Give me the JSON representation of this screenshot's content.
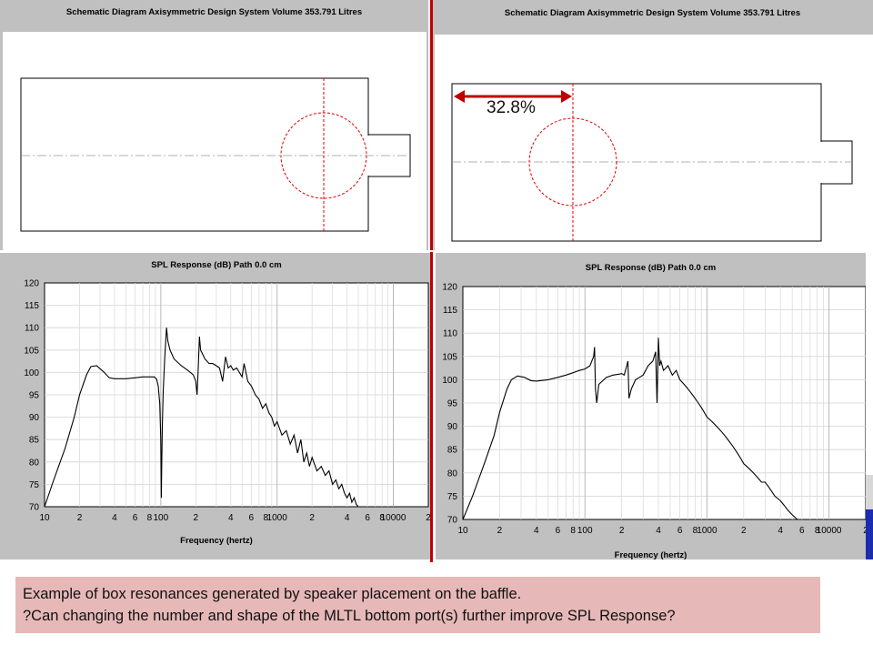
{
  "left": {
    "schematic_title": "Schematic Diagram   Axisymmetric Design   System Volume 353.791 Litres",
    "chart_title": "SPL Response (dB)   Path 0.0 cm",
    "xlabel": "Frequency (hertz)"
  },
  "right": {
    "schematic_title": "Schematic Diagram   Axisymmetric Design   System Volume 353.791 Litres",
    "chart_title": "SPL Response (dB)   Path 0.0 cm",
    "xlabel": "Frequency (hertz)",
    "annotation": "32.8%"
  },
  "caption": {
    "line1": "Example of box resonances generated by speaker placement on the baffle.",
    "line2": "?Can changing the number and shape of the MLTL bottom port(s) further improve SPL Response?"
  },
  "colors": {
    "accent_red": "#c00000",
    "caption_bg": "#e6b9b8",
    "panel_gray": "#c0c0c0"
  },
  "chart_data": [
    {
      "type": "line",
      "title": "SPL Response (dB)   Path 0.0 cm",
      "xlabel": "Frequency (hertz)",
      "ylabel": "",
      "xscale": "log",
      "xlim": [
        10,
        20000
      ],
      "ylim": [
        70,
        120
      ],
      "yticks": [
        70,
        75,
        80,
        85,
        90,
        95,
        100,
        105,
        110,
        115,
        120
      ],
      "xtick_labels": [
        "10",
        "2",
        "4",
        "6",
        "8",
        "100",
        "2",
        "4",
        "6",
        "8",
        "1000",
        "2",
        "4",
        "6",
        "8",
        "10000",
        "2"
      ],
      "xtick_values": [
        10,
        20,
        40,
        60,
        80,
        100,
        200,
        400,
        600,
        800,
        1000,
        2000,
        4000,
        6000,
        8000,
        10000,
        20000
      ],
      "grid": true,
      "series": [
        {
          "x": [
            10,
            12,
            15,
            18,
            20,
            23,
            25,
            28,
            32,
            36,
            40,
            50,
            60,
            70,
            80,
            88,
            92,
            95,
            98,
            100,
            101,
            102,
            103,
            105,
            108,
            112,
            115,
            120,
            130,
            150,
            170,
            190,
            200,
            205,
            210,
            215,
            220,
            240,
            260,
            280,
            300,
            320,
            340,
            360,
            380,
            400,
            420,
            450,
            500,
            520,
            560,
            600,
            650,
            700,
            750,
            800,
            850,
            900,
            950,
            1000,
            1100,
            1200,
            1300,
            1400,
            1500,
            1600,
            1700,
            1800,
            1900,
            2000,
            2200,
            2400,
            2600,
            2800,
            3000,
            3200,
            3400,
            3600,
            3800,
            4000,
            4200,
            4400,
            4600,
            4800,
            5000
          ],
          "y": [
            70,
            76,
            83,
            90,
            95,
            99.5,
            101.3,
            101.5,
            100.2,
            98.8,
            98.6,
            98.6,
            98.8,
            99,
            99,
            99,
            98.5,
            97,
            93,
            85,
            72,
            80,
            88,
            96,
            103,
            110,
            107,
            105,
            103,
            101.5,
            100.5,
            99.5,
            98,
            95,
            101,
            108,
            105,
            103,
            102,
            102,
            101.5,
            101,
            98,
            103.5,
            101,
            101.5,
            100.5,
            101,
            99,
            102,
            98,
            97,
            95,
            94,
            92,
            93,
            91,
            90,
            88,
            89,
            86,
            87,
            84,
            86,
            82,
            85,
            80,
            82,
            79,
            81,
            78,
            79,
            77,
            78,
            75,
            76,
            74,
            75,
            73,
            72,
            73,
            71,
            72,
            70.5,
            70
          ]
        }
      ]
    },
    {
      "type": "line",
      "title": "SPL Response (dB)   Path 0.0 cm",
      "xlabel": "Frequency (hertz)",
      "ylabel": "",
      "xscale": "log",
      "xlim": [
        10,
        20000
      ],
      "ylim": [
        70,
        120
      ],
      "yticks": [
        70,
        75,
        80,
        85,
        90,
        95,
        100,
        105,
        110,
        115,
        120
      ],
      "xtick_labels": [
        "10",
        "2",
        "4",
        "6",
        "8",
        "100",
        "2",
        "4",
        "6",
        "8",
        "1000",
        "2",
        "4",
        "6",
        "8",
        "10000",
        "2"
      ],
      "xtick_values": [
        10,
        20,
        40,
        60,
        80,
        100,
        200,
        400,
        600,
        800,
        1000,
        2000,
        4000,
        6000,
        8000,
        10000,
        20000
      ],
      "grid": true,
      "series": [
        {
          "x": [
            10,
            12,
            15,
            18,
            20,
            23,
            25,
            28,
            32,
            36,
            40,
            50,
            60,
            70,
            80,
            90,
            100,
            110,
            118,
            120,
            122,
            125,
            130,
            150,
            170,
            190,
            200,
            210,
            220,
            225,
            230,
            240,
            260,
            280,
            300,
            330,
            360,
            380,
            390,
            400,
            410,
            420,
            440,
            480,
            520,
            560,
            600,
            650,
            700,
            750,
            800,
            850,
            900,
            950,
            1000,
            1100,
            1200,
            1300,
            1400,
            1500,
            1600,
            1700,
            1800,
            1900,
            2000,
            2200,
            2400,
            2600,
            2800,
            3000,
            3200,
            3400,
            3600,
            3800,
            4000,
            4300,
            4600,
            5000,
            5500
          ],
          "y": [
            70,
            75,
            82,
            88,
            93,
            98,
            100,
            100.8,
            100.5,
            99.8,
            99.7,
            100,
            100.5,
            101,
            101.5,
            102,
            102.3,
            103,
            105,
            107,
            98,
            95,
            99,
            100.5,
            101,
            101.2,
            101.3,
            101,
            103,
            104,
            96,
            98,
            100,
            100.5,
            101,
            103,
            104,
            106,
            95,
            109,
            103,
            104,
            102,
            103,
            101,
            102,
            100,
            99,
            98,
            97,
            96,
            95,
            94,
            93,
            92,
            91,
            90,
            89,
            88,
            87,
            86,
            85,
            84,
            83,
            82,
            81,
            80,
            79,
            78,
            78,
            77,
            76,
            75,
            74.5,
            74,
            73,
            72,
            71,
            70
          ]
        }
      ]
    }
  ]
}
